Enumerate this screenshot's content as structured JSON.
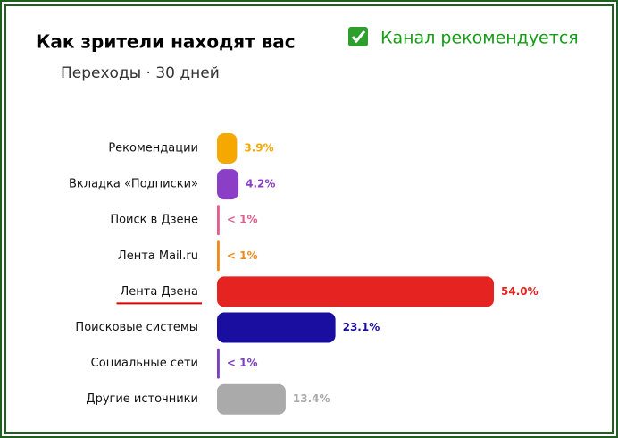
{
  "chart_data": {
    "type": "barh",
    "title": "Как зрители находят вас",
    "subtitle": "Переходы · 30 дней",
    "annotation": "Канал рекомендуется",
    "categories": [
      "Рекомендации",
      "Вкладка «Подписки»",
      "Поиск в Дзене",
      "Лента Mail.ru",
      "Лента Дзена",
      "Поисковые системы",
      "Социальные сети",
      "Другие источники"
    ],
    "values": [
      3.9,
      4.2,
      0.5,
      0.5,
      54.0,
      23.1,
      0.5,
      13.4
    ],
    "value_labels": [
      "3.9%",
      "4.2%",
      "< 1%",
      "< 1%",
      "54.0%",
      "23.1%",
      "< 1%",
      "13.4%"
    ],
    "colors": [
      "#f5a800",
      "#8b3fc6",
      "#e0608a",
      "#f08a1c",
      "#e52421",
      "#1a0ea0",
      "#7a3fc0",
      "#aaaaaa"
    ],
    "highlight_category": 4
  }
}
